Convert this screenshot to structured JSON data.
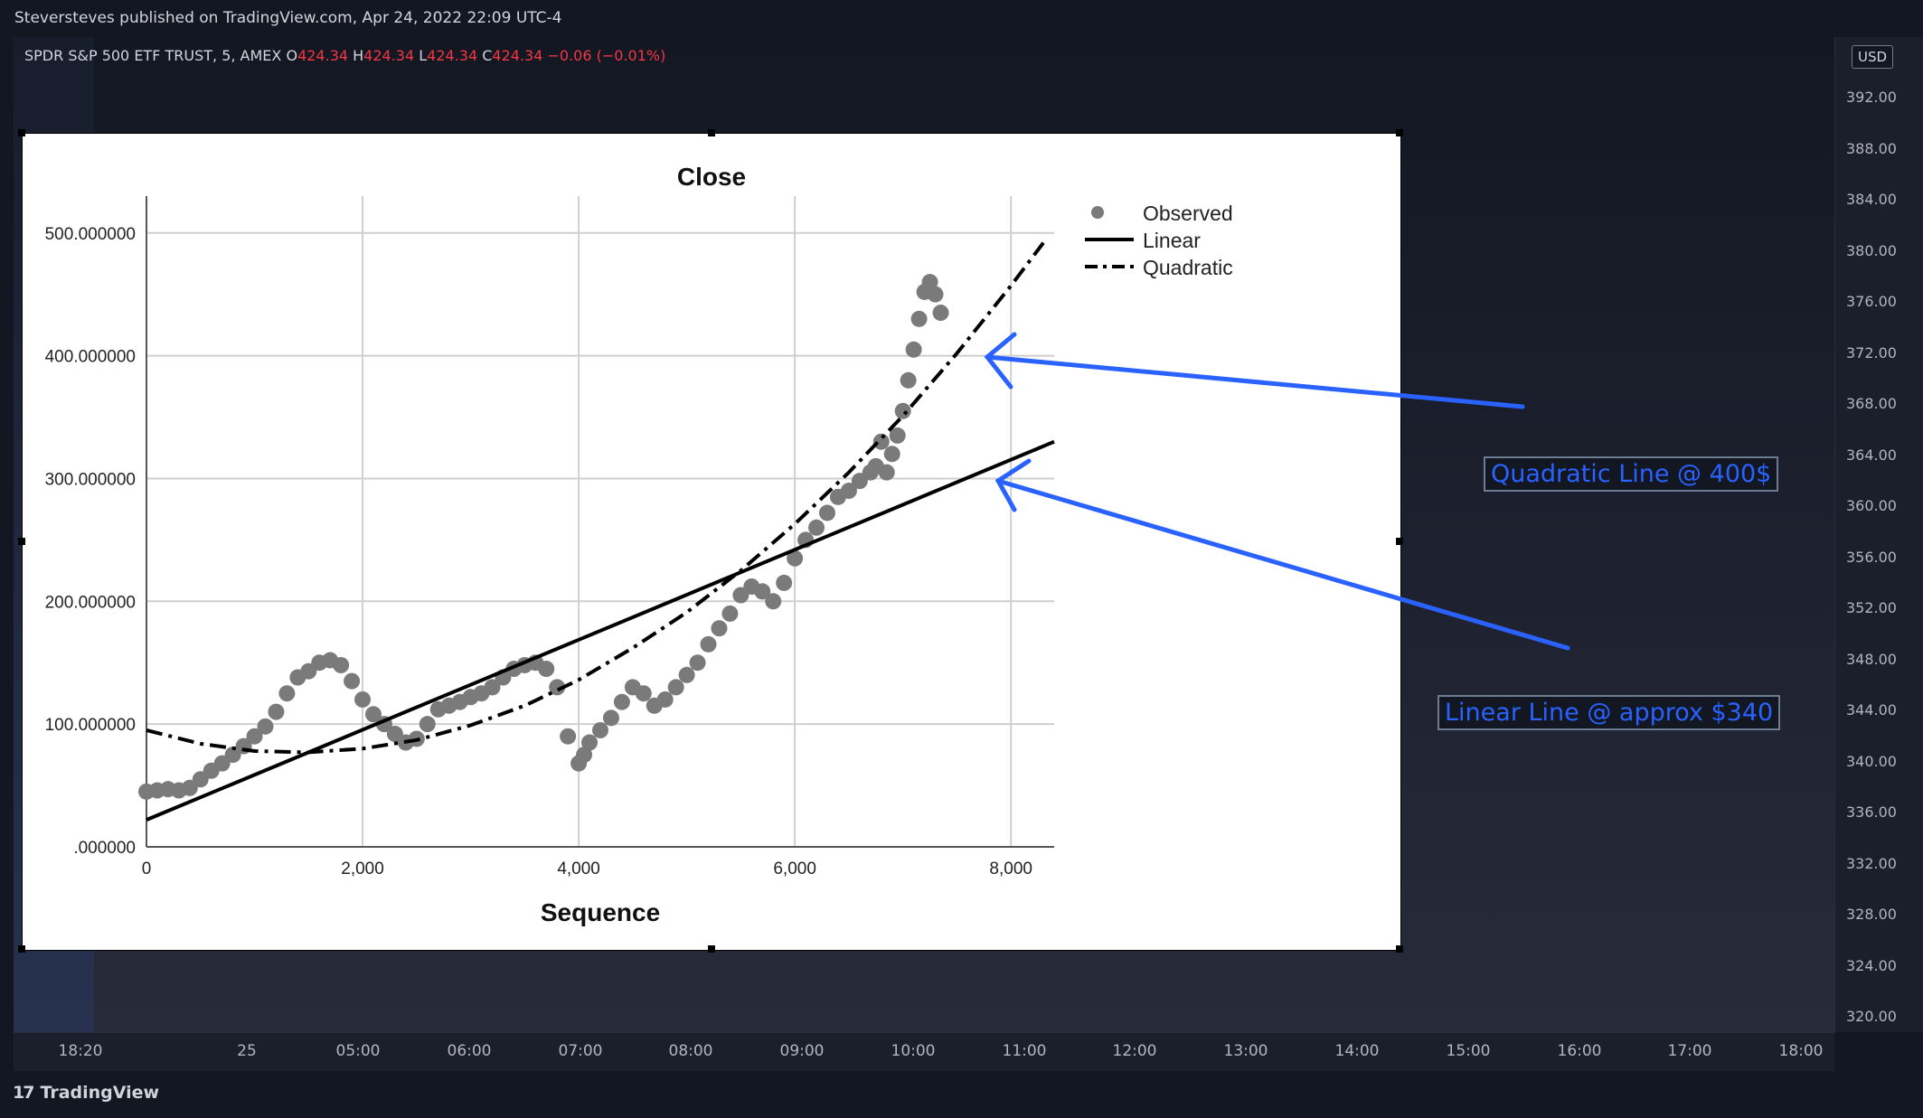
{
  "publisher": "Steversteves published on TradingView.com, Apr 24, 2022 22:09 UTC-4",
  "symbol": {
    "name": "SPDR S&P 500 ETF TRUST, 5, AMEX",
    "o_label": "O",
    "o_value": "424.34",
    "h_label": "H",
    "h_value": "424.34",
    "l_label": "L",
    "l_value": "424.34",
    "c_label": "C",
    "c_value": "424.34",
    "change": "−0.06 (−0.01%)"
  },
  "price_axis": {
    "currency": "USD",
    "ticks": [
      "392.00",
      "388.00",
      "384.00",
      "380.00",
      "376.00",
      "372.00",
      "368.00",
      "364.00",
      "360.00",
      "356.00",
      "352.00",
      "348.00",
      "344.00",
      "340.00",
      "336.00",
      "332.00",
      "328.00",
      "324.00",
      "320.00"
    ]
  },
  "time_axis": {
    "ticks": [
      "18:20",
      "25",
      "05:00",
      "06:00",
      "07:00",
      "08:00",
      "09:00",
      "10:00",
      "11:00",
      "12:00",
      "13:00",
      "14:00",
      "15:00",
      "16:00",
      "17:00",
      "18:00"
    ]
  },
  "footer": {
    "logo_mark": "17",
    "logo_text": "TradingView"
  },
  "annotations": {
    "quadratic": "Quadratic Line @ 400$",
    "linear": "Linear Line @ approx $340"
  },
  "colors": {
    "arrow": "#2962ff",
    "up": "#089981",
    "down": "#f23645",
    "background": "#131722"
  },
  "chart_data": {
    "type": "scatter",
    "title": "Close",
    "xlabel": "Sequence",
    "ylabel": "",
    "xlim": [
      0,
      8400
    ],
    "ylim": [
      0,
      530
    ],
    "x_ticks": [
      0,
      2000,
      4000,
      6000,
      8000
    ],
    "x_tick_labels": [
      "0",
      "2,000",
      "4,000",
      "6,000",
      "8,000"
    ],
    "y_ticks": [
      0,
      100,
      200,
      300,
      400,
      500
    ],
    "y_tick_labels": [
      ".000000",
      "100.000000",
      "200.000000",
      "300.000000",
      "400.000000",
      "500.000000"
    ],
    "grid": true,
    "legend": {
      "position": "top-right",
      "entries": [
        "Observed",
        "Linear",
        "Quadratic"
      ]
    },
    "series": [
      {
        "name": "Observed",
        "x": [
          0,
          100,
          200,
          300,
          400,
          500,
          600,
          700,
          800,
          900,
          1000,
          1100,
          1200,
          1300,
          1400,
          1500,
          1600,
          1700,
          1800,
          1900,
          2000,
          2100,
          2200,
          2300,
          2400,
          2500,
          2600,
          2700,
          2800,
          2900,
          3000,
          3100,
          3200,
          3300,
          3400,
          3500,
          3600,
          3700,
          3800,
          3900,
          4000,
          4050,
          4100,
          4200,
          4300,
          4400,
          4500,
          4600,
          4700,
          4800,
          4900,
          5000,
          5100,
          5200,
          5300,
          5400,
          5500,
          5600,
          5700,
          5800,
          5900,
          6000,
          6100,
          6200,
          6300,
          6400,
          6500,
          6600,
          6700,
          6750,
          6800,
          6850,
          6900,
          6950,
          7000,
          7050,
          7100,
          7150,
          7200,
          7250,
          7300,
          7350
        ],
        "y": [
          45,
          46,
          47,
          46,
          48,
          55,
          62,
          68,
          75,
          82,
          90,
          98,
          110,
          125,
          138,
          143,
          150,
          152,
          148,
          135,
          120,
          108,
          100,
          92,
          85,
          88,
          100,
          112,
          115,
          118,
          122,
          125,
          130,
          138,
          145,
          148,
          150,
          145,
          130,
          90,
          68,
          75,
          85,
          95,
          105,
          118,
          130,
          125,
          115,
          120,
          130,
          140,
          150,
          165,
          178,
          190,
          205,
          212,
          208,
          200,
          215,
          235,
          250,
          260,
          272,
          285,
          290,
          298,
          305,
          310,
          330,
          305,
          320,
          335,
          355,
          380,
          405,
          430,
          452,
          460,
          450,
          435
        ],
        "marker": "circle"
      },
      {
        "name": "Linear",
        "x": [
          0,
          8400
        ],
        "y": [
          22,
          330
        ],
        "style": "solid"
      },
      {
        "name": "Quadratic",
        "x": [
          0,
          500,
          1000,
          1500,
          2000,
          2500,
          3000,
          3500,
          4000,
          4500,
          5000,
          5500,
          6000,
          6500,
          7000,
          7500,
          8000,
          8300
        ],
        "y": [
          95,
          84,
          78,
          77,
          80,
          87,
          99,
          115,
          136,
          162,
          191,
          225,
          263,
          305,
          351,
          402,
          457,
          492
        ],
        "style": "dash-dot"
      }
    ]
  }
}
